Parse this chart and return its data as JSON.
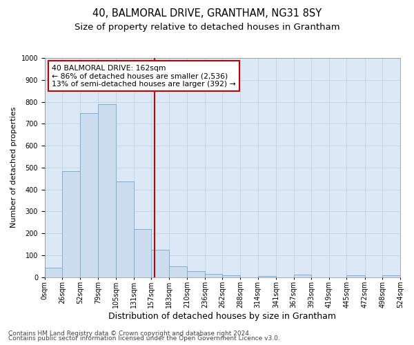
{
  "title": "40, BALMORAL DRIVE, GRANTHAM, NG31 8SY",
  "subtitle": "Size of property relative to detached houses in Grantham",
  "xlabel": "Distribution of detached houses by size in Grantham",
  "ylabel": "Number of detached properties",
  "bin_edges": [
    0,
    26,
    52,
    79,
    105,
    131,
    157,
    183,
    210,
    236,
    262,
    288,
    314,
    341,
    367,
    393,
    419,
    445,
    472,
    498,
    524
  ],
  "bar_heights": [
    42,
    485,
    748,
    790,
    435,
    220,
    125,
    50,
    28,
    13,
    8,
    0,
    5,
    0,
    10,
    0,
    0,
    8,
    0,
    8
  ],
  "bar_color": "#ccddf0",
  "bar_edge_color": "#7bafd4",
  "property_size": 162,
  "annotation_line1": "40 BALMORAL DRIVE: 162sqm",
  "annotation_line2": "← 86% of detached houses are smaller (2,536)",
  "annotation_line3": "13% of semi-detached houses are larger (392) →",
  "annotation_box_color": "#c00000",
  "vline_color": "#c00000",
  "ylim": [
    0,
    1000
  ],
  "yticks": [
    0,
    100,
    200,
    300,
    400,
    500,
    600,
    700,
    800,
    900,
    1000
  ],
  "grid_color": "#b8cfe0",
  "bg_color": "#dce8f5",
  "footer_line1": "Contains HM Land Registry data © Crown copyright and database right 2024.",
  "footer_line2": "Contains public sector information licensed under the Open Government Licence v3.0.",
  "title_fontsize": 10.5,
  "subtitle_fontsize": 9.5,
  "xlabel_fontsize": 9,
  "ylabel_fontsize": 8,
  "tick_fontsize": 7,
  "footer_fontsize": 6.5
}
